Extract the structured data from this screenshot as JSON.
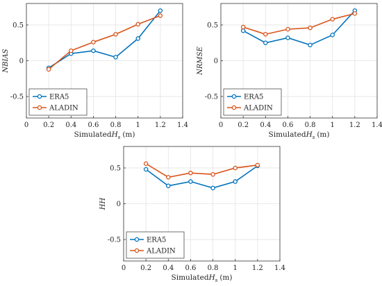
{
  "colors": {
    "era5": "#0072BD",
    "aladin": "#D95319",
    "grid": "#e3e3e3",
    "axis": "#333333"
  },
  "chart_data": [
    {
      "type": "line",
      "ylabel": "NBIAS",
      "xlabel_prefix": "Simulated",
      "xlabel_var": "H",
      "xlabel_sub": "s",
      "xlabel_unit": "(m)",
      "xlim": [
        0,
        1.4
      ],
      "ylim": [
        -0.8,
        0.8
      ],
      "xticks": [
        0,
        0.2,
        0.4,
        0.6,
        0.8,
        1,
        1.2,
        1.4
      ],
      "yticks": [
        -0.5,
        0,
        0.5
      ],
      "grid": true,
      "legend_position": "bottom-left",
      "series": [
        {
          "name": "ERA5",
          "x": [
            0.2,
            0.4,
            0.6,
            0.8,
            1.0,
            1.2
          ],
          "values": [
            -0.1,
            0.1,
            0.14,
            0.05,
            0.31,
            0.7
          ]
        },
        {
          "name": "ALADIN",
          "x": [
            0.2,
            0.4,
            0.6,
            0.8,
            1.0,
            1.2
          ],
          "values": [
            -0.12,
            0.14,
            0.26,
            0.37,
            0.51,
            0.63
          ]
        }
      ]
    },
    {
      "type": "line",
      "ylabel": "NRMSE",
      "xlabel_prefix": "Simulated",
      "xlabel_var": "H",
      "xlabel_sub": "s",
      "xlabel_unit": "(m)",
      "xlim": [
        0,
        1.4
      ],
      "ylim": [
        -0.8,
        0.8
      ],
      "xticks": [
        0,
        0.2,
        0.4,
        0.6,
        0.8,
        1,
        1.2,
        1.4
      ],
      "yticks": [
        -0.5,
        0,
        0.5
      ],
      "grid": true,
      "legend_position": "bottom-left",
      "series": [
        {
          "name": "ERA5",
          "x": [
            0.2,
            0.4,
            0.6,
            0.8,
            1.0,
            1.2
          ],
          "values": [
            0.42,
            0.25,
            0.32,
            0.22,
            0.36,
            0.7
          ]
        },
        {
          "name": "ALADIN",
          "x": [
            0.2,
            0.4,
            0.6,
            0.8,
            1.0,
            1.2
          ],
          "values": [
            0.47,
            0.37,
            0.44,
            0.46,
            0.58,
            0.66
          ]
        }
      ]
    },
    {
      "type": "line",
      "ylabel": "HH",
      "xlabel_prefix": "Simulated",
      "xlabel_var": "H",
      "xlabel_sub": "s",
      "xlabel_unit": "(m)",
      "xlim": [
        0,
        1.4
      ],
      "ylim": [
        -0.8,
        0.8
      ],
      "xticks": [
        0,
        0.2,
        0.4,
        0.6,
        0.8,
        1,
        1.2,
        1.4
      ],
      "yticks": [
        -0.5,
        0,
        0.5
      ],
      "grid": true,
      "legend_position": "bottom-left",
      "series": [
        {
          "name": "ERA5",
          "x": [
            0.2,
            0.4,
            0.6,
            0.8,
            1.0,
            1.2
          ],
          "values": [
            0.48,
            0.25,
            0.31,
            0.22,
            0.31,
            0.53
          ]
        },
        {
          "name": "ALADIN",
          "x": [
            0.2,
            0.4,
            0.6,
            0.8,
            1.0,
            1.2
          ],
          "values": [
            0.56,
            0.37,
            0.43,
            0.41,
            0.5,
            0.54
          ]
        }
      ]
    }
  ]
}
